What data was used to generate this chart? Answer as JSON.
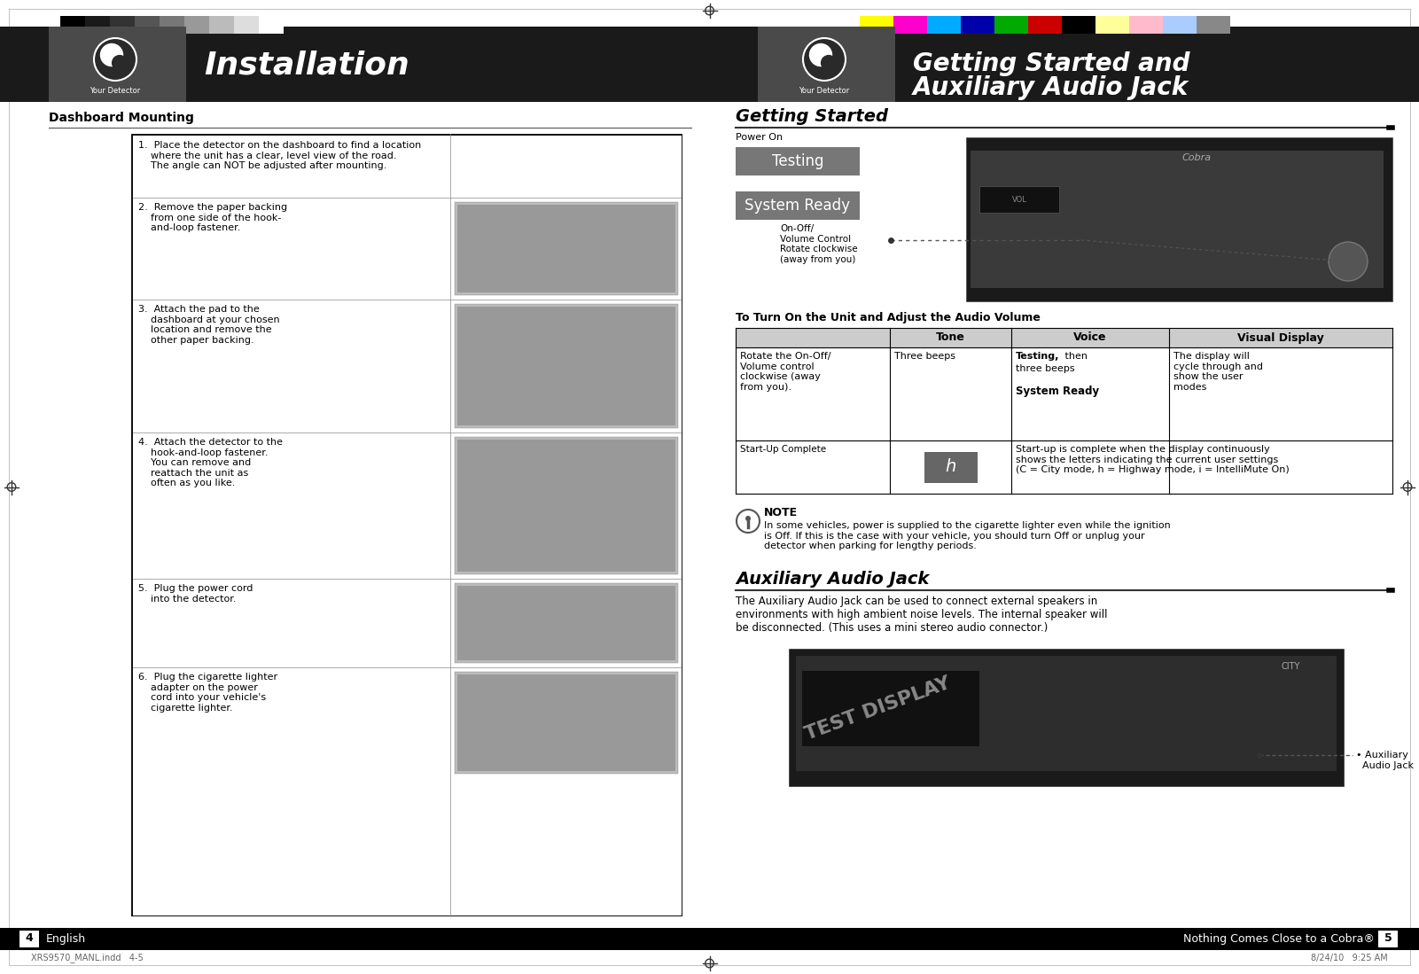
{
  "page_bg": "#ffffff",
  "header_bg": "#1a1a1a",
  "header_text_color": "#ffffff",
  "left_title": "Installation",
  "right_title_line1": "Getting Started and",
  "right_title_line2": "Auxiliary Audio Jack",
  "left_section_title": "Dashboard Mounting",
  "right_section1_title": "Getting Started",
  "right_section2_title": "Auxiliary Audio Jack",
  "gray_swatches": [
    "#000000",
    "#1a1a1a",
    "#333333",
    "#555555",
    "#777777",
    "#999999",
    "#bbbbbb",
    "#dddddd",
    "#ffffff"
  ],
  "color_swatches": [
    "#ffff00",
    "#ff00cc",
    "#00aaff",
    "#0000aa",
    "#00aa00",
    "#cc0000",
    "#000000",
    "#ffff99",
    "#ffbbcc",
    "#aaccff",
    "#888888"
  ],
  "testing_bg": "#777777",
  "system_ready_bg": "#777777",
  "h_bg": "#666666",
  "bottom_bar_color": "#000000",
  "page_num_left": "4",
  "page_num_left_label": "English",
  "page_num_right": "5",
  "page_num_right_label": "Nothing Comes Close to a Cobra®",
  "footer_text": "XRS9570_MANL.indd   4-5",
  "footer_date": "8/24/10   9:25 AM",
  "step1": "1.  Place the detector on the dashboard to find a location\n    where the unit has a clear, level view of the road.\n    The angle can NOT be adjusted after mounting.",
  "step2": "2.  Remove the paper backing\n    from one side of the hook-\n    and-loop fastener.",
  "step3": "3.  Attach the pad to the\n    dashboard at your chosen\n    location and remove the\n    other paper backing.",
  "step4": "4.  Attach the detector to the\n    hook-and-loop fastener.\n    You can remove and\n    reattach the unit as\n    often as you like.",
  "step5": "5.  Plug the power cord\n    into the detector.",
  "step6": "6.  Plug the cigarette lighter\n    adapter on the power\n    cord into your vehicle's\n    cigarette lighter.",
  "power_on_label": "Power On",
  "testing_label": "Testing",
  "system_ready_label": "System Ready",
  "onoff_label": "On-Off/\nVolume Control\nRotate clockwise\n(away from you)",
  "turn_on_header": "To Turn On the Unit and Adjust the Audio Volume",
  "col1_header": "Rotate the On-Off/\nVolume control\nclockwise (away\nfrom you).",
  "col2_header": "Tone",
  "col3_header": "Voice",
  "col4_header": "Visual Display",
  "row1_col2": "Three beeps",
  "row1_col4": "The display will\ncycle through and\nshow the user\nmodes",
  "startup_label": "Start-Up Complete",
  "h_label": "h",
  "startup_desc": "Start-up is complete when the display continuously\nshows the letters indicating the current user settings\n(C = City mode, h = Highway mode, i = IntelliMute On)",
  "note_title": "NOTE",
  "note_text": "In some vehicles, power is supplied to the cigarette lighter even while the ignition\nis Off. If this is the case with your vehicle, you should turn Off or unplug your\ndetector when parking for lengthy periods.",
  "aux_jack_text": "The Auxiliary Audio Jack can be used to connect external speakers in\nenvironments with high ambient noise levels. The internal speaker will\nbe disconnected. (This uses a mini stereo audio connector.)",
  "aux_jack_label": "Auxiliary\nAudio Jack",
  "detector_icon_text": "Your Detector"
}
